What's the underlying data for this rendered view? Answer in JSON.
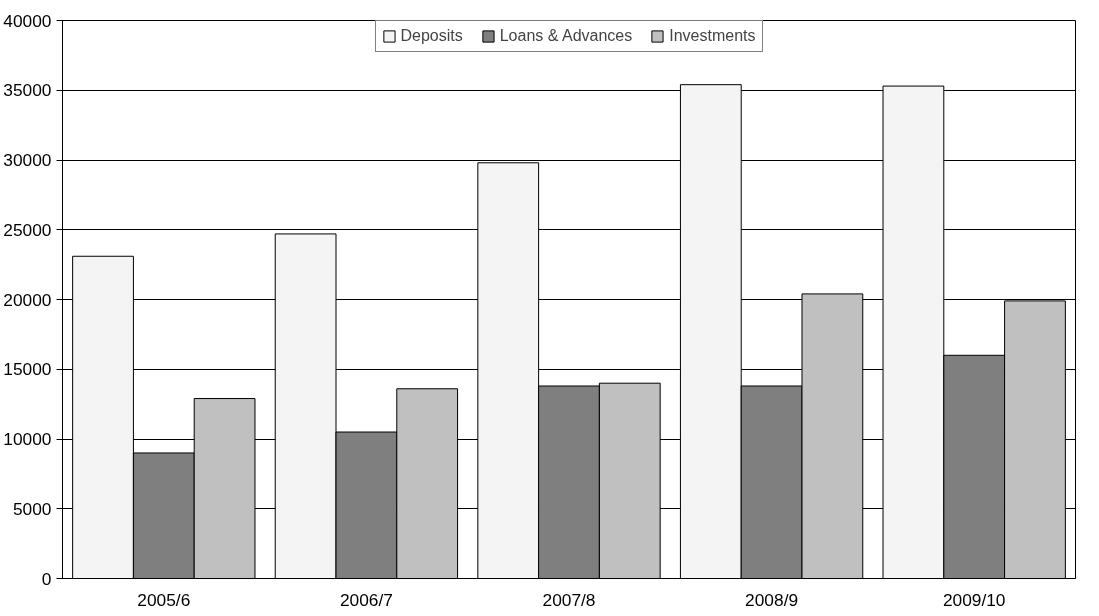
{
  "chart_data": {
    "type": "bar",
    "categories": [
      "2005/6",
      "2006/7",
      "2007/8",
      "2008/9",
      "2009/10"
    ],
    "series": [
      {
        "name": "Deposits",
        "color": "#f4f4f4",
        "values": [
          23100,
          24700,
          29800,
          35400,
          35300
        ]
      },
      {
        "name": "Loans & Advances",
        "color": "#7f7f7f",
        "values": [
          9000,
          10500,
          13800,
          13800,
          16000
        ]
      },
      {
        "name": "Investments",
        "color": "#c0c0c0",
        "values": [
          12900,
          13600,
          14000,
          20400,
          19900
        ]
      }
    ],
    "ylim": [
      0,
      40000
    ],
    "yticks": [
      0,
      5000,
      10000,
      15000,
      20000,
      25000,
      30000,
      35000,
      40000
    ],
    "grid": "y",
    "legend": "top"
  }
}
